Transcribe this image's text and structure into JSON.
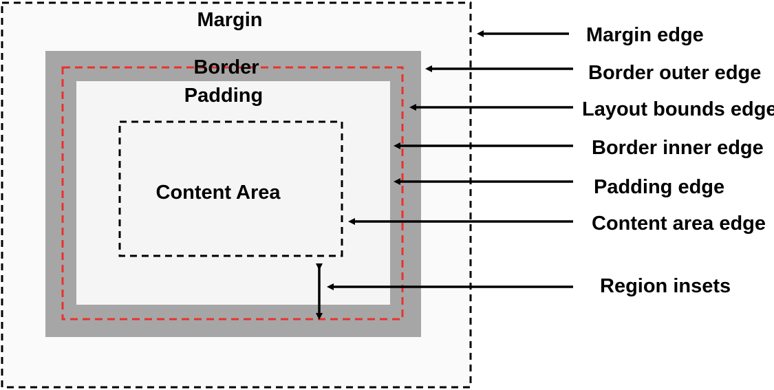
{
  "regions": {
    "margin": "Margin",
    "border": "Border",
    "padding": "Padding",
    "content": "Content Area"
  },
  "callouts": [
    {
      "label": "Margin edge"
    },
    {
      "label": "Border outer edge"
    },
    {
      "label": "Layout bounds edge"
    },
    {
      "label": "Border inner edge"
    },
    {
      "label": "Padding edge"
    },
    {
      "label": "Content area edge"
    },
    {
      "label": "Region insets"
    }
  ],
  "colors": {
    "margin_fill": "#fafafa",
    "border_fill": "#a6a6a6",
    "padding_fill": "#f5f5f5",
    "layout_bounds_stroke": "#e8322e",
    "edge_stroke": "#000000"
  }
}
